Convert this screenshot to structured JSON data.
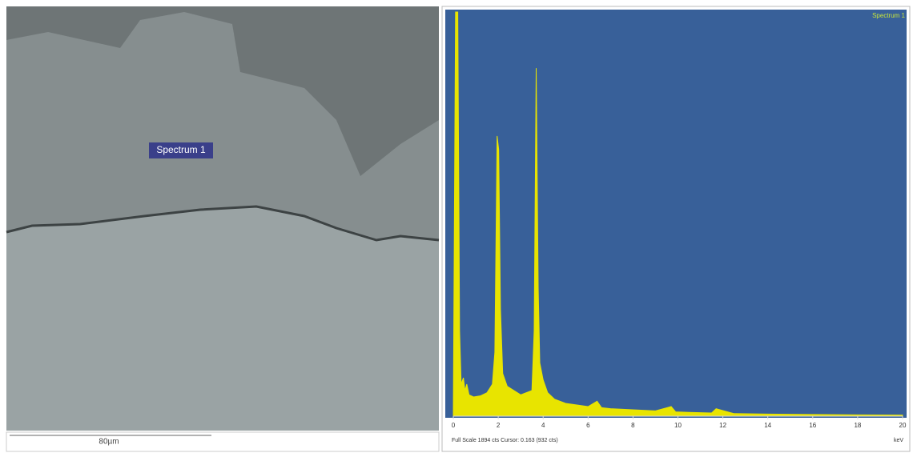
{
  "sem_image": {
    "label": "Spectrum 1",
    "scale_bar": "80µm"
  },
  "chart_data": {
    "type": "area",
    "legend": "Spectrum 1",
    "x": [
      0,
      0.1,
      0.2,
      0.28,
      0.35,
      0.45,
      0.52,
      0.6,
      0.7,
      0.9,
      1.2,
      1.5,
      1.74,
      1.85,
      1.95,
      2.02,
      2.1,
      2.2,
      2.4,
      3.0,
      3.5,
      3.6,
      3.69,
      3.78,
      3.85,
      4.0,
      4.2,
      4.5,
      5.0,
      6.0,
      6.4,
      6.6,
      7.0,
      8.0,
      9.0,
      9.7,
      9.9,
      10.5,
      11.5,
      11.7,
      12.5,
      14,
      16,
      18,
      20
    ],
    "values": [
      0,
      1894,
      1894,
      400,
      150,
      180,
      120,
      150,
      100,
      90,
      95,
      110,
      150,
      300,
      1313,
      1250,
      500,
      200,
      140,
      100,
      120,
      400,
      1631,
      600,
      250,
      170,
      110,
      80,
      60,
      45,
      70,
      40,
      35,
      30,
      25,
      45,
      20,
      18,
      15,
      35,
      12,
      10,
      8,
      6,
      5
    ],
    "color": "#e8e400",
    "background": "#386099",
    "xlim": [
      0,
      20
    ],
    "xticks": [
      0,
      2,
      4,
      6,
      8,
      10,
      12,
      14,
      16,
      18,
      20
    ],
    "ylim": [
      0,
      1894
    ],
    "x_unit": "keV",
    "footer": "Full Scale 1894 cts Cursor: 0.163  (932 cts)"
  }
}
